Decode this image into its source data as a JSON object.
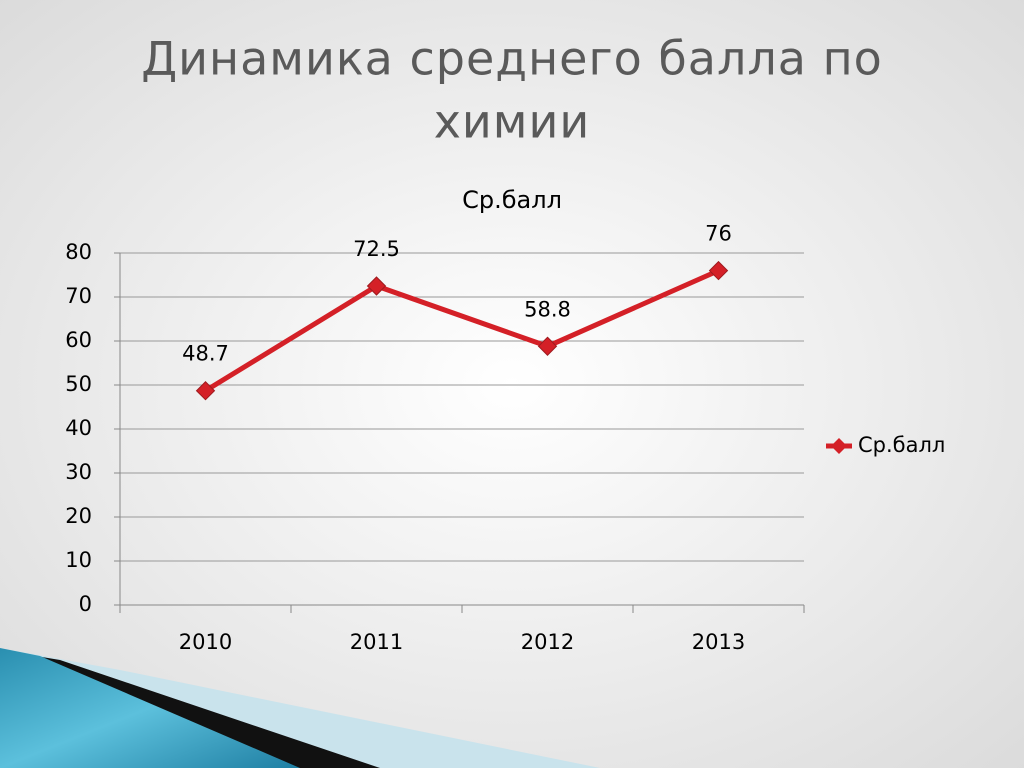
{
  "title_lines": [
    "Динамика среднего балла по",
    "химии"
  ],
  "chart_data": {
    "type": "line",
    "title": "Ср.балл",
    "categories": [
      "2010",
      "2011",
      "2012",
      "2013"
    ],
    "series": [
      {
        "name": "Ср.балл",
        "color": "#d42027",
        "values": [
          48.7,
          72.5,
          58.8,
          76
        ]
      }
    ],
    "ylim": [
      0,
      80
    ],
    "yticks": [
      0,
      10,
      20,
      30,
      40,
      50,
      60,
      70,
      80
    ],
    "grid": true,
    "legend": "right",
    "data_labels": true
  }
}
